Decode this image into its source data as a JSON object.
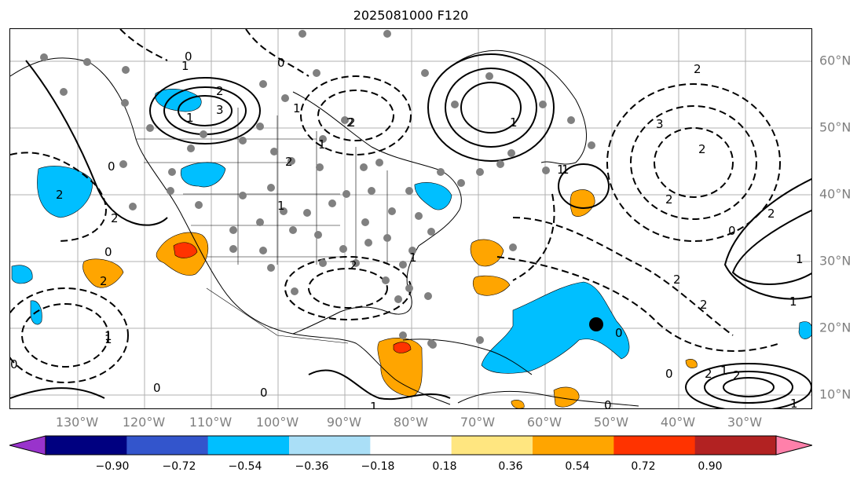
{
  "title": "2025081000 F120",
  "lon_labels": [
    "130°W",
    "120°W",
    "110°W",
    "100°W",
    "90°W",
    "80°W",
    "70°W",
    "60°W",
    "50°W",
    "40°W",
    "30°W"
  ],
  "lat_labels": [
    "60°N",
    "50°N",
    "40°N",
    "30°N",
    "20°N",
    "10°N"
  ],
  "colorbar": {
    "colors": [
      "#9933cc",
      "#000080",
      "#3355cc",
      "#00bfff",
      "#aadff7",
      "#ffffff",
      "#ffe680",
      "#ffa500",
      "#ff3300",
      "#b22222",
      "#ff80aa"
    ],
    "tick_labels": [
      "−0.90",
      "−0.72",
      "−0.54",
      "−0.36",
      "−0.18",
      "0.18",
      "0.36",
      "0.54",
      "0.72",
      "0.90"
    ]
  },
  "contour_labels": [
    "1",
    "2",
    "3",
    "0",
    "1",
    "2",
    "1",
    "1",
    "2",
    "2",
    "3",
    "2",
    "2",
    "0",
    "1",
    "2",
    "2",
    "0",
    "1",
    "1",
    "2",
    "1",
    "0",
    "2",
    "1",
    "2",
    "0",
    "1",
    "2",
    "1",
    "0",
    "2",
    "2",
    "1",
    "2",
    "0",
    "1",
    "0",
    "1",
    "2",
    "0",
    "0",
    "1",
    "0",
    "1"
  ]
}
